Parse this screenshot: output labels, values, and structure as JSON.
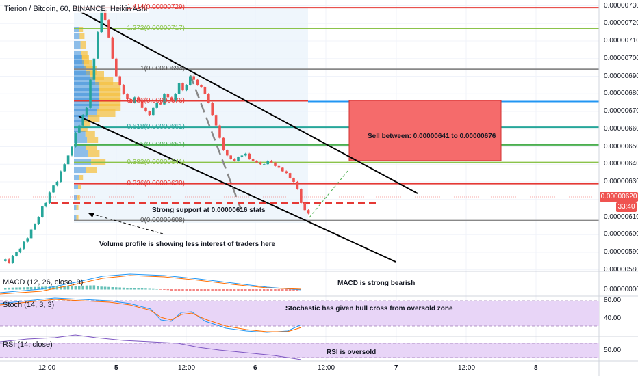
{
  "header": {
    "title": "Tierion / Bitcoin, 60, BINANCE, Heikin Ashi"
  },
  "price_axis": {
    "ticks": [
      "0.00000730",
      "0.00000720",
      "0.00000710",
      "0.00000700",
      "0.00000690",
      "0.00000680",
      "0.00000670",
      "0.00000660",
      "0.00000650",
      "0.00000640",
      "0.00000630",
      "0.00000620",
      "0.00000610",
      "0.00000600",
      "0.00000590",
      "0.00000580"
    ],
    "current_price": "0.00000620",
    "countdown": "33:40",
    "colors": {
      "current": "#ef5350",
      "countdown": "#ef5350"
    }
  },
  "time_axis": {
    "ticks": [
      "12:00",
      "5",
      "12:00",
      "6",
      "12:00",
      "7",
      "12:00",
      "8"
    ]
  },
  "fibonacci": {
    "levels": [
      {
        "label": "1.414(0.00000729)",
        "price": 7.29e-06,
        "color": "#e53935"
      },
      {
        "label": "1.272(0.00000717)",
        "price": 7.17e-06,
        "color": "#8bc34a"
      },
      {
        "label": "1(0.00000694)",
        "price": 6.94e-06,
        "color": "#888888"
      },
      {
        "label": "0.786(0.00000676)",
        "price": 6.76e-06,
        "color": "#e53935"
      },
      {
        "label": "0.618(0.00000661)",
        "price": 6.61e-06,
        "color": "#26a69a"
      },
      {
        "label": "0.5(0.00000651)",
        "price": 6.51e-06,
        "color": "#4caf50"
      },
      {
        "label": "0.382(0.00000641)",
        "price": 6.41e-06,
        "color": "#8bc34a"
      },
      {
        "label": "0.236(0.00000629)",
        "price": 6.29e-06,
        "color": "#e53935"
      },
      {
        "label": "0(0.00000608)",
        "price": 6.08e-06,
        "color": "#888888"
      }
    ]
  },
  "annotations": {
    "sell_zone": "Sell between: 0.00000641 to 0.00000676",
    "support": "Strong support at 0.00000616 stats",
    "volume_note": "Volume profile is showing less interest of traders here",
    "macd_note": "MACD is strong bearish",
    "stoch_note": "Stochastic has given bull cross from oversold zone",
    "rsi_note": "RSI is oversold"
  },
  "indicators": {
    "macd": {
      "label": "MACD (12, 26, close, 9)",
      "ticks": [
        "0.00000000"
      ]
    },
    "stoch": {
      "label": "Stoch (14, 3, 3)",
      "ticks": [
        "80.00",
        "40.00"
      ]
    },
    "rsi": {
      "label": "RSI (14, close)",
      "ticks": [
        "50.00"
      ]
    }
  },
  "colors": {
    "up": "#26a69a",
    "down": "#ef5350",
    "sell_zone": "#f56b6b",
    "channel": "#000000",
    "support": "#e53935",
    "stoch_band": "#e8d5f7",
    "axis_line": "#d1d4dc"
  }
}
